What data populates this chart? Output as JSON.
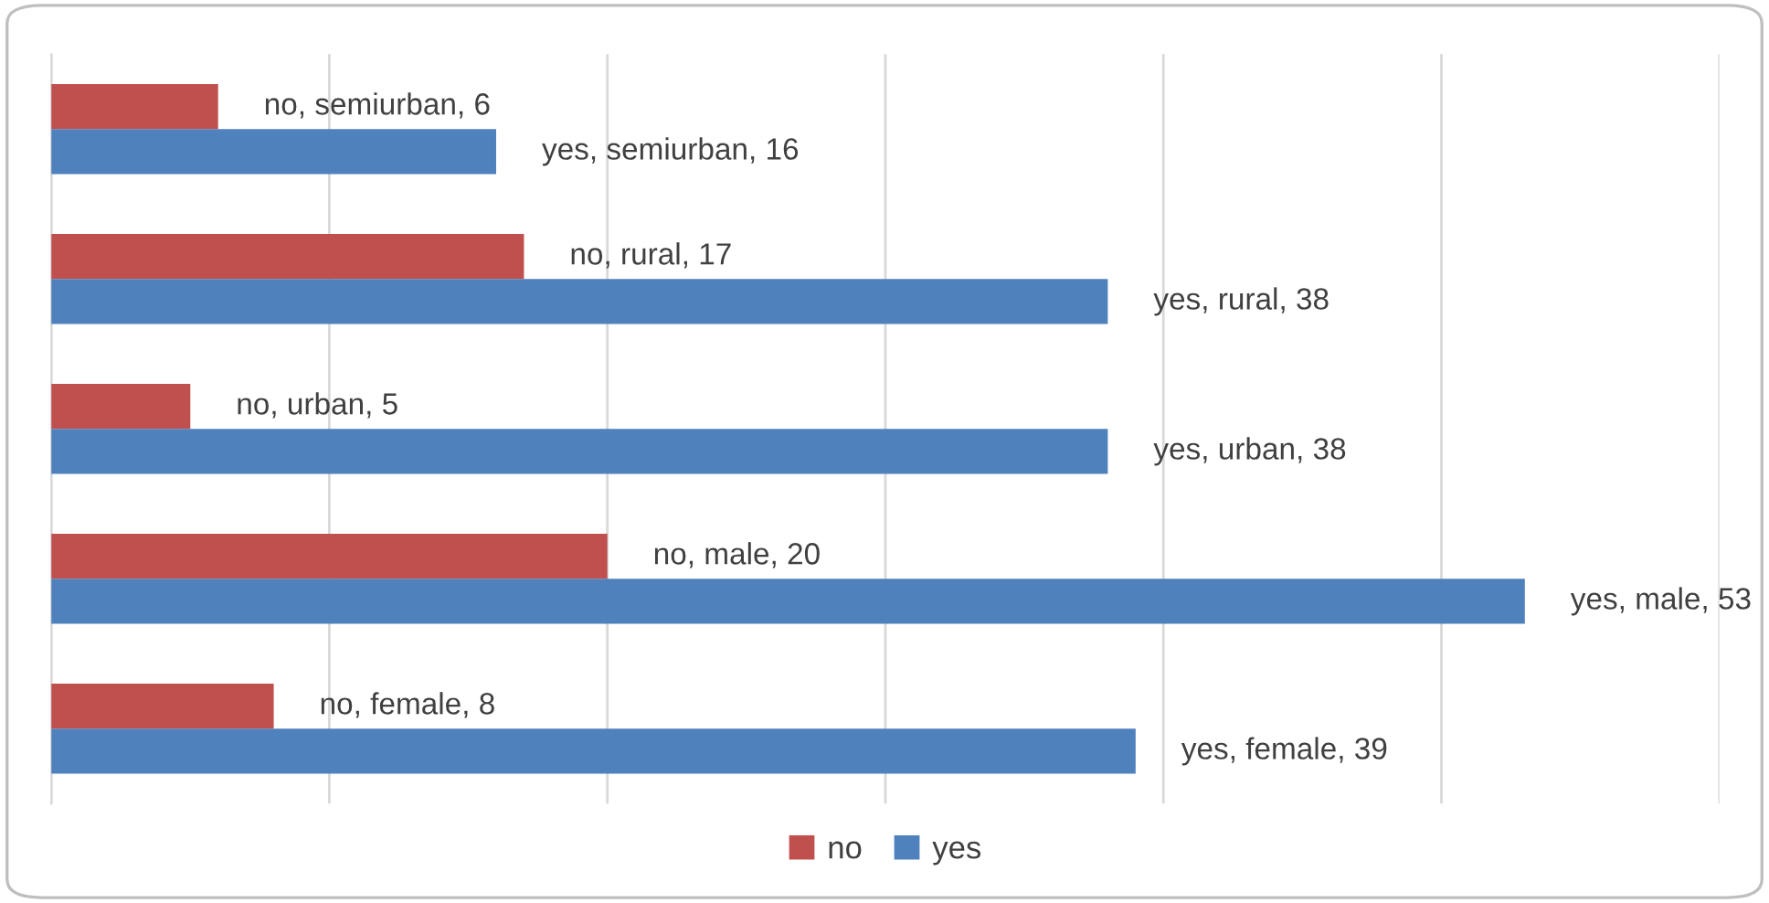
{
  "chart_data": {
    "type": "bar",
    "orientation": "horizontal",
    "categories": [
      null,
      null,
      null,
      null,
      null
    ],
    "series": [
      {
        "name": "no",
        "color": "#c0504d",
        "values": [
          6,
          17,
          5,
          20,
          8
        ],
        "value_labels": [
          "no, semiurban, 6",
          "no, rural, 17",
          "no, urban, 5",
          "no, male, 20",
          "no, female, 8"
        ]
      },
      {
        "name": "yes",
        "color": "#4f81bd",
        "values": [
          16,
          38,
          38,
          53,
          39
        ],
        "value_labels": [
          "yes, semiurban, 16",
          "yes, rural, 38",
          "yes, urban, 38",
          "yes, male, 53",
          "yes, female, 39"
        ]
      }
    ],
    "xlim": [
      0,
      60
    ],
    "xticks": [
      {
        "value": 0,
        "label": null
      },
      {
        "value": 10,
        "label": null
      },
      {
        "value": 20,
        "label": null
      },
      {
        "value": 30,
        "label": null
      },
      {
        "value": 40,
        "label": null
      },
      {
        "value": 50,
        "label": null
      },
      {
        "value": 60,
        "label": null
      }
    ],
    "grid": "x",
    "legend": "bottom"
  }
}
